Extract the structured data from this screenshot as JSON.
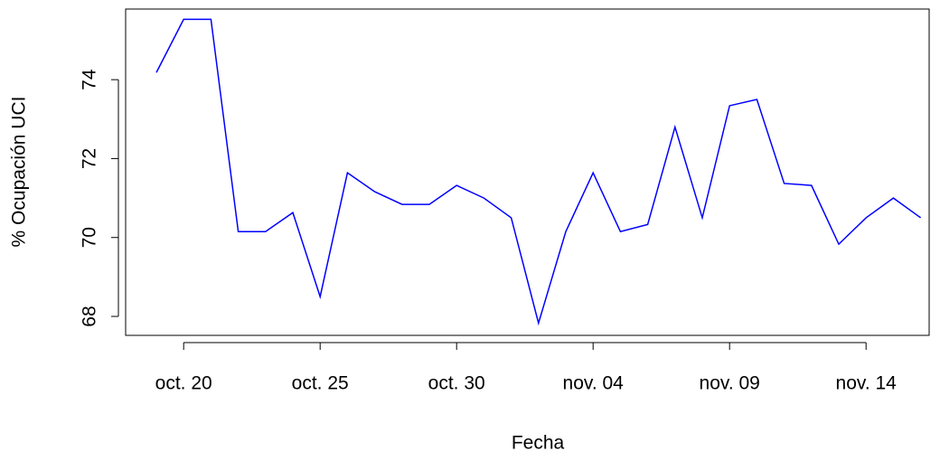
{
  "chart_data": {
    "type": "line",
    "x_label": "Fecha",
    "y_label": "% Ocupación UCI",
    "categories": [
      null,
      "oct. 20",
      null,
      null,
      null,
      null,
      "oct. 25",
      null,
      null,
      null,
      null,
      "oct. 30",
      null,
      null,
      null,
      null,
      "nov. 04",
      null,
      null,
      null,
      null,
      "nov. 09",
      null,
      null,
      null,
      null,
      "nov. 14",
      null,
      null
    ],
    "series": [
      {
        "color": "#0000ff",
        "values": [
          74.18,
          75.53,
          75.53,
          70.15,
          70.15,
          70.63,
          68.5,
          71.64,
          71.16,
          70.84,
          70.84,
          71.32,
          71.0,
          70.5,
          67.83,
          70.15,
          71.64,
          70.15,
          70.33,
          72.8,
          70.5,
          73.34,
          73.5,
          71.37,
          71.32,
          69.83,
          70.5,
          71.0,
          70.5
        ]
      }
    ],
    "ylim": [
      67.52,
      75.79
    ],
    "yticks": [
      68,
      70,
      72,
      74
    ],
    "grid": false
  }
}
